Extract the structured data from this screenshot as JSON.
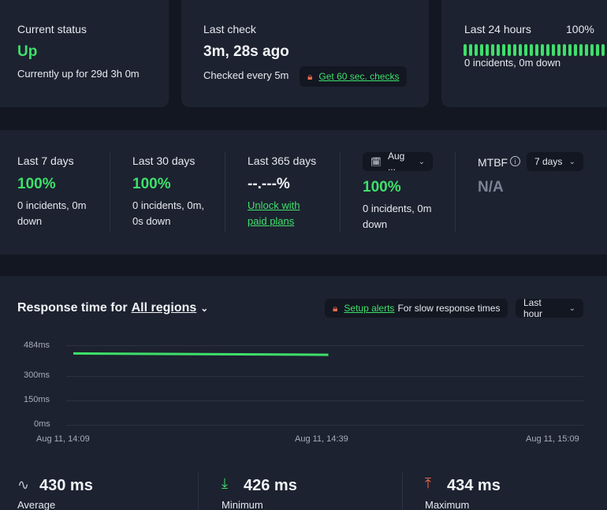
{
  "status_card": {
    "title": "Current status",
    "value": "Up",
    "sub": "Currently up for 29d 3h 0m"
  },
  "check_card": {
    "title": "Last check",
    "value": "3m, 28s ago",
    "sub": "Checked every 5m",
    "upsell": "Get 60 sec. checks"
  },
  "day_card": {
    "title": "Last 24 hours",
    "pct": "100%",
    "sub": "0 incidents, 0m down",
    "bar_count": 27
  },
  "periods": [
    {
      "title": "Last 7 days",
      "value": "100%",
      "sub": "0 incidents, 0m down"
    },
    {
      "title": "Last 30 days",
      "value": "100%",
      "sub": "0 incidents, 0m, 0s down"
    },
    {
      "title": "Last 365 days",
      "value": "--.---%",
      "sub": "Unlock with paid plans"
    },
    {
      "select": "Aug ...",
      "value": "100%",
      "sub": "0 incidents, 0m down"
    }
  ],
  "mtbf": {
    "title": "MTBF",
    "select": "7 days",
    "value": "N/A"
  },
  "response": {
    "title_prefix": "Response time for",
    "region": "All regions",
    "alert_link": "Setup alerts",
    "alert_text": "For slow response times",
    "range": "Last hour"
  },
  "chart_data": {
    "type": "line",
    "ylabels": [
      "484ms",
      "300ms",
      "150ms",
      "0ms"
    ],
    "xlabels": [
      "Aug 11, 14:09",
      "Aug 11, 14:39",
      "Aug 11, 15:09"
    ],
    "ylim": [
      0,
      484
    ],
    "xlim_minutes": [
      0,
      60
    ],
    "series": [
      {
        "x": [
          0,
          30
        ],
        "y": [
          434,
          426
        ]
      }
    ]
  },
  "stats": [
    {
      "value": "430 ms",
      "label": "Average",
      "icon": "average-icon"
    },
    {
      "value": "426 ms",
      "label": "Minimum",
      "icon": "minimum-icon"
    },
    {
      "value": "434 ms",
      "label": "Maximum",
      "icon": "maximum-icon"
    }
  ],
  "colors": {
    "accent": "#3ee06a",
    "warning": "#f06a4a",
    "card": "#1d2230",
    "bg": "#131722"
  }
}
